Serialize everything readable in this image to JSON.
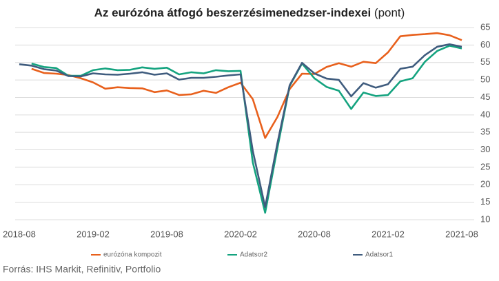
{
  "chart_data": {
    "type": "line",
    "title": "Az eurózóna átfogó beszerzésimenedzser-indexei",
    "title_suffix": "(pont)",
    "source": "Forrás: IHS Markit, Refinitiv, Portfolio",
    "categories": [
      "2018-08",
      null,
      null,
      null,
      null,
      null,
      "2019-02",
      null,
      null,
      null,
      null,
      null,
      "2019-08",
      null,
      null,
      null,
      null,
      null,
      "2020-02",
      null,
      null,
      null,
      null,
      null,
      "2020-08",
      null,
      null,
      null,
      null,
      null,
      "2021-02",
      null,
      null,
      null,
      null,
      null,
      "2021-08"
    ],
    "series": [
      {
        "name": "eurózóna kompozit",
        "color": "#e8601c",
        "values": [
          null,
          53.2,
          52.0,
          51.8,
          51.4,
          50.5,
          49.3,
          47.5,
          47.9,
          47.7,
          47.6,
          46.5,
          47.0,
          45.7,
          45.9,
          46.9,
          46.3,
          47.9,
          49.2,
          44.5,
          33.4,
          39.4,
          47.4,
          51.8,
          51.7,
          53.7,
          54.8,
          53.8,
          55.2,
          54.8,
          57.9,
          62.5,
          62.9,
          63.1,
          63.4,
          62.8,
          61.4
        ]
      },
      {
        "name": "Adatsor2",
        "color": "#14a37f",
        "values": [
          null,
          54.7,
          53.7,
          53.4,
          51.2,
          51.2,
          52.8,
          53.3,
          52.8,
          52.9,
          53.6,
          53.2,
          53.5,
          51.6,
          52.2,
          51.9,
          52.8,
          52.5,
          52.6,
          26.4,
          12.0,
          30.5,
          48.3,
          54.7,
          50.5,
          48.0,
          46.9,
          41.7,
          46.4,
          45.4,
          45.7,
          49.6,
          50.5,
          55.2,
          58.3,
          59.8,
          59.0
        ]
      },
      {
        "name": "Adatsor1",
        "color": "#3f5c7e",
        "values": [
          54.5,
          54.1,
          53.1,
          52.7,
          51.1,
          51.0,
          51.9,
          51.6,
          51.5,
          51.8,
          52.2,
          51.5,
          51.9,
          50.1,
          50.6,
          50.6,
          50.9,
          51.3,
          51.6,
          29.7,
          13.6,
          31.9,
          48.5,
          54.9,
          51.9,
          50.4,
          50.0,
          45.3,
          49.1,
          47.8,
          48.8,
          53.2,
          53.8,
          57.1,
          59.5,
          60.2,
          59.5
        ]
      }
    ],
    "ylim": [
      10,
      65
    ],
    "yticks": [
      10,
      15,
      20,
      25,
      30,
      35,
      40,
      45,
      50,
      55,
      60,
      65
    ],
    "grid": true
  }
}
